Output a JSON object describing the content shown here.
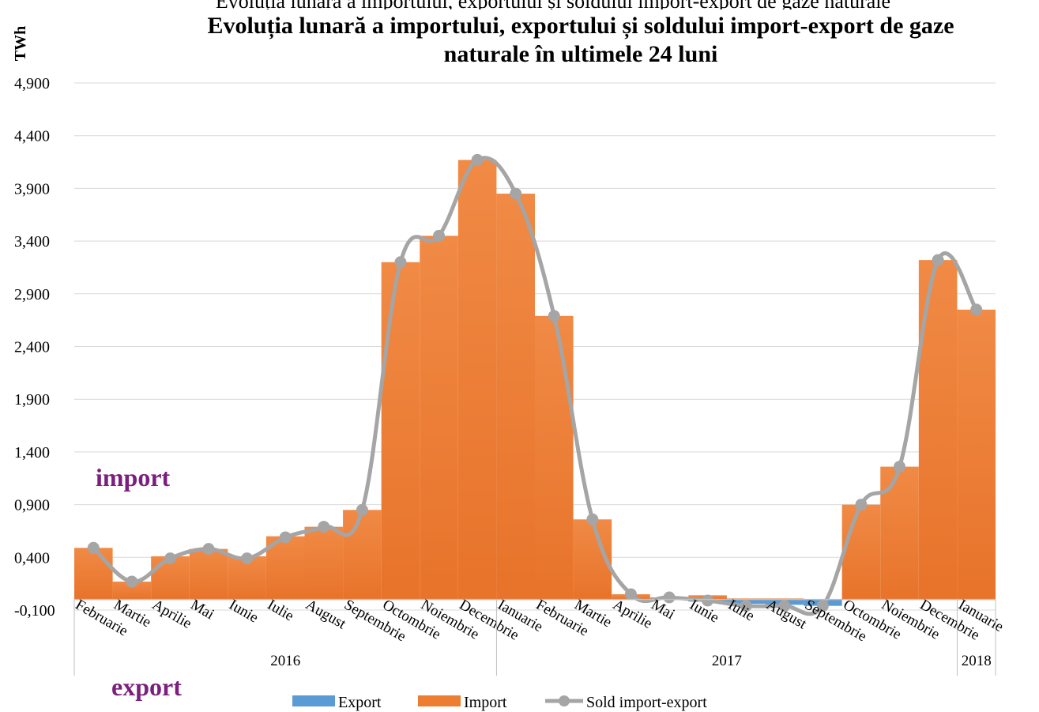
{
  "chart_data": {
    "type": "bar",
    "behind_title": "Evoluția lunară a importului, exportului și soldului import-export de gaze naturale",
    "title_lines": [
      "Evoluția lunară a importului, exportului și soldului import-export de gaze",
      "naturale în ultimele 24 luni"
    ],
    "ylabel": "TWh",
    "ylim": [
      -0.1,
      4.9
    ],
    "yticks": [
      {
        "value": -0.1,
        "label": "-0,100"
      },
      {
        "value": 0.4,
        "label": "0,400"
      },
      {
        "value": 0.9,
        "label": "0,900"
      },
      {
        "value": 1.4,
        "label": "1,400"
      },
      {
        "value": 1.9,
        "label": "1,900"
      },
      {
        "value": 2.4,
        "label": "2,400"
      },
      {
        "value": 2.9,
        "label": "2,900"
      },
      {
        "value": 3.4,
        "label": "3,400"
      },
      {
        "value": 3.9,
        "label": "3,900"
      },
      {
        "value": 4.4,
        "label": "4,400"
      },
      {
        "value": 4.9,
        "label": "4,900"
      }
    ],
    "grid": true,
    "categories": [
      "Februarie",
      "Martie",
      "Aprilie",
      "Mai",
      "Iunie",
      "Iulie",
      "August",
      "Septembrie",
      "Octombrie",
      "Noiembrie",
      "Decembrie",
      "Ianuarie",
      "Februarie",
      "Martie",
      "Aprilie",
      "Mai",
      "Iunie",
      "Iulie",
      "August",
      "Septembrie",
      "Octombrie",
      "Noiembrie",
      "Decembrie",
      "Ianuarie"
    ],
    "year_groups": [
      {
        "label": "2016",
        "count": 11
      },
      {
        "label": "2017",
        "count": 12
      },
      {
        "label": "2018",
        "count": 1
      }
    ],
    "series": [
      {
        "name": "Export",
        "type": "bar",
        "color": "#5b9bd5",
        "values": [
          0,
          0,
          0,
          0,
          0,
          0,
          0,
          0,
          0,
          0,
          0,
          0,
          0,
          0,
          0,
          0,
          -0.02,
          -0.04,
          -0.05,
          -0.06,
          0,
          0,
          0,
          0
        ]
      },
      {
        "name": "Import",
        "type": "bar",
        "color": "#ed7d31",
        "values": [
          0.49,
          0.17,
          0.41,
          0.48,
          0.41,
          0.6,
          0.69,
          0.85,
          3.2,
          3.45,
          4.17,
          3.85,
          2.69,
          0.76,
          0.05,
          0.02,
          0.04,
          0.01,
          0.01,
          0.0,
          0.9,
          1.26,
          3.22,
          2.75
        ]
      },
      {
        "name": "Sold import-export",
        "type": "line",
        "color": "#a5a5a5",
        "values": [
          0.49,
          0.17,
          0.39,
          0.48,
          0.39,
          0.59,
          0.69,
          0.85,
          3.2,
          3.45,
          4.17,
          3.85,
          2.69,
          0.76,
          0.05,
          0.02,
          -0.01,
          -0.06,
          -0.06,
          -0.06,
          0.9,
          1.26,
          3.22,
          2.75
        ]
      }
    ],
    "annotations": {
      "top": "import",
      "bottom": "export"
    },
    "legend_position": "bottom"
  }
}
